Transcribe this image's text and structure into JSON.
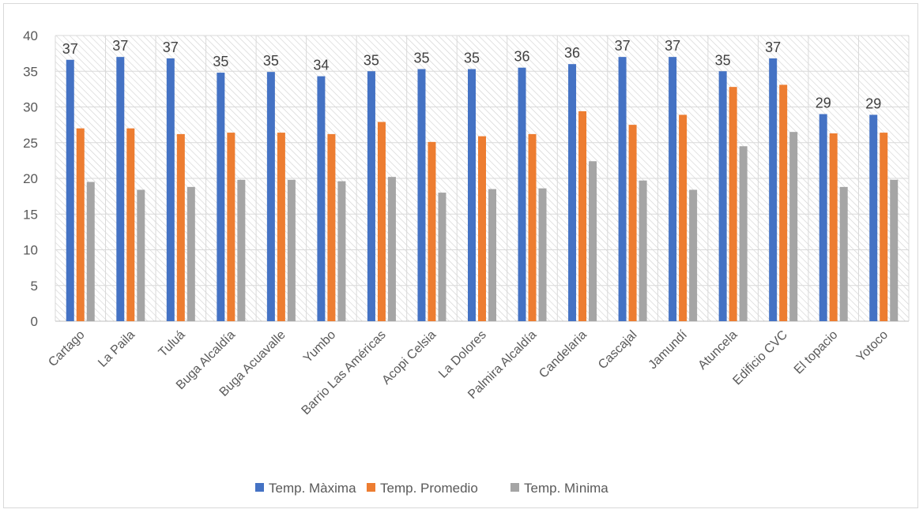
{
  "chart_data": {
    "type": "bar",
    "categories": [
      "Cartago",
      "La Paila",
      "Tuluá",
      "Buga Alcaldía",
      "Buga Acuavalle",
      "Yumbo",
      "Barrio Las Américas",
      "Acopi Celsia",
      "La Dolores",
      "Palmira Alcaldía",
      "Candelaria",
      "Cascajal",
      "Jamundí",
      "Atuncela",
      "Edificio CVC",
      "El topacio",
      "Yotoco"
    ],
    "series": [
      {
        "name": "Temp. Màxima",
        "color": "#4472c4",
        "values": [
          36.6,
          37.0,
          36.8,
          34.8,
          34.9,
          34.3,
          35.0,
          35.3,
          35.3,
          35.5,
          36.0,
          37.0,
          37.0,
          35.0,
          36.8,
          29.0,
          28.9
        ],
        "data_labels": [
          "37",
          "37",
          "37",
          "35",
          "35",
          "34",
          "35",
          "35",
          "35",
          "36",
          "36",
          "37",
          "37",
          "35",
          "37",
          "29",
          "29"
        ]
      },
      {
        "name": "Temp. Promedio",
        "color": "#ed7d31",
        "values": [
          27.0,
          27.0,
          26.2,
          26.4,
          26.4,
          26.2,
          27.9,
          25.1,
          25.9,
          26.2,
          29.4,
          27.5,
          28.9,
          32.8,
          33.1,
          26.3,
          26.4
        ]
      },
      {
        "name": "Temp. Mìnima",
        "color": "#a5a5a5",
        "values": [
          19.5,
          18.4,
          18.8,
          19.8,
          19.8,
          19.6,
          20.2,
          18.0,
          18.5,
          18.6,
          22.4,
          19.7,
          18.4,
          24.5,
          26.5,
          18.8,
          19.8
        ]
      }
    ],
    "ylim": [
      0,
      40
    ],
    "yticks": [
      "0",
      "5",
      "10",
      "15",
      "20",
      "25",
      "30",
      "35",
      "40"
    ],
    "grid": true,
    "legend": "bottom",
    "title": "",
    "xlabel": "",
    "ylabel": ""
  }
}
